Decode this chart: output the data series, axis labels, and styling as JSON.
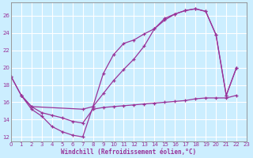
{
  "xlabel": "Windchill (Refroidissement éolien,°C)",
  "bg_color": "#cceeff",
  "grid_color": "#ffffff",
  "line_color": "#993399",
  "xlim": [
    0,
    23
  ],
  "ylim": [
    11.5,
    27.5
  ],
  "xticks": [
    0,
    1,
    2,
    3,
    4,
    5,
    6,
    7,
    8,
    9,
    10,
    11,
    12,
    13,
    14,
    15,
    16,
    17,
    18,
    19,
    20,
    21,
    22,
    23
  ],
  "yticks": [
    12,
    14,
    16,
    18,
    20,
    22,
    24,
    26
  ],
  "curve1": [
    [
      0,
      19.0
    ],
    [
      1,
      16.8
    ],
    [
      2,
      15.2
    ],
    [
      3,
      14.4
    ],
    [
      4,
      13.2
    ],
    [
      5,
      12.6
    ],
    [
      6,
      12.2
    ],
    [
      7,
      12.0
    ],
    [
      8,
      15.5
    ],
    [
      9,
      19.3
    ],
    [
      10,
      21.5
    ],
    [
      11,
      22.8
    ],
    [
      12,
      23.2
    ],
    [
      13,
      23.9
    ],
    [
      14,
      24.5
    ],
    [
      15,
      25.7
    ],
    [
      16,
      26.2
    ],
    [
      17,
      26.6
    ],
    [
      18,
      26.8
    ],
    [
      19,
      26.5
    ],
    [
      20,
      23.8
    ],
    [
      21,
      16.8
    ],
    [
      22,
      20.0
    ]
  ],
  "curve2": [
    [
      1,
      16.8
    ],
    [
      2,
      15.5
    ],
    [
      3,
      14.8
    ],
    [
      4,
      14.5
    ],
    [
      5,
      14.2
    ],
    [
      6,
      13.8
    ],
    [
      7,
      13.6
    ],
    [
      8,
      15.2
    ],
    [
      9,
      15.4
    ],
    [
      10,
      15.5
    ],
    [
      11,
      15.6
    ],
    [
      12,
      15.7
    ],
    [
      13,
      15.8
    ],
    [
      14,
      15.9
    ],
    [
      15,
      16.0
    ],
    [
      16,
      16.1
    ],
    [
      17,
      16.2
    ],
    [
      18,
      16.4
    ],
    [
      19,
      16.5
    ],
    [
      20,
      16.5
    ],
    [
      21,
      16.5
    ],
    [
      22,
      16.8
    ]
  ],
  "curve3": [
    [
      0,
      19.0
    ],
    [
      1,
      16.8
    ],
    [
      2,
      15.5
    ],
    [
      7,
      15.2
    ],
    [
      8,
      15.5
    ],
    [
      9,
      17.0
    ],
    [
      10,
      18.5
    ],
    [
      11,
      19.8
    ],
    [
      12,
      21.0
    ],
    [
      13,
      22.5
    ],
    [
      14,
      24.5
    ],
    [
      15,
      25.5
    ],
    [
      16,
      26.2
    ],
    [
      17,
      26.6
    ],
    [
      18,
      26.8
    ],
    [
      19,
      26.5
    ],
    [
      20,
      23.8
    ],
    [
      21,
      16.8
    ],
    [
      22,
      20.0
    ]
  ]
}
